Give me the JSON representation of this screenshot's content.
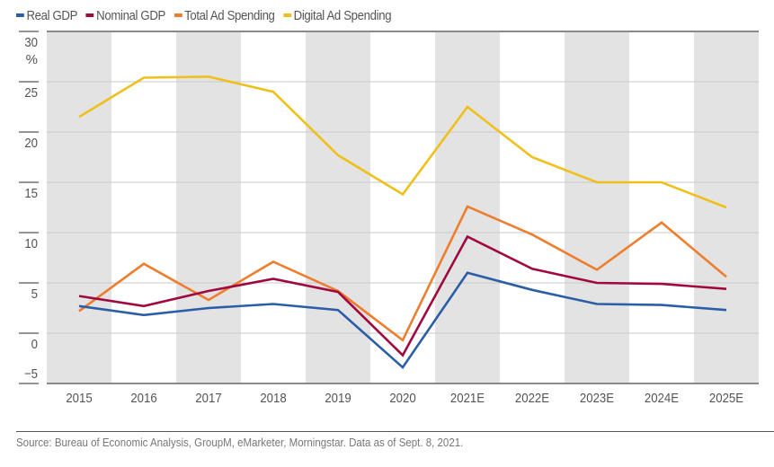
{
  "chart_data": {
    "type": "line",
    "title": "",
    "xlabel": "",
    "ylabel": "%",
    "ylim": [
      -5,
      30
    ],
    "yticks": [
      30,
      25,
      20,
      15,
      10,
      5,
      0,
      -5
    ],
    "ytick_labels": [
      "30",
      "25",
      "20",
      "15",
      "10",
      "5",
      "0",
      "−5"
    ],
    "y_unit_label": "%",
    "grid": true,
    "legend_position": "top-left",
    "categories": [
      "2015",
      "2016",
      "2017",
      "2018",
      "2019",
      "2020",
      "2021E",
      "2022E",
      "2023E",
      "2024E",
      "2025E"
    ],
    "series": [
      {
        "name": "Real GDP",
        "color": "#2b5ea7",
        "values": [
          2.7,
          1.8,
          2.5,
          2.9,
          2.3,
          -3.4,
          6.0,
          4.3,
          2.9,
          2.8,
          2.3
        ]
      },
      {
        "name": "Nominal GDP",
        "color": "#a0083f",
        "values": [
          3.7,
          2.7,
          4.2,
          5.4,
          4.1,
          -2.2,
          9.6,
          6.4,
          5.0,
          4.9,
          4.4
        ]
      },
      {
        "name": "Total Ad Spending",
        "color": "#ee7d2e",
        "values": [
          2.2,
          6.9,
          3.3,
          7.1,
          4.2,
          -0.7,
          12.6,
          9.8,
          6.3,
          11.0,
          5.6
        ]
      },
      {
        "name": "Digital Ad Spending",
        "color": "#f0c01a",
        "values": [
          21.5,
          25.4,
          25.5,
          24.0,
          17.7,
          13.8,
          22.5,
          17.5,
          15.0,
          15.0,
          12.5
        ]
      }
    ],
    "band_color": "#e3e3e3",
    "source": "Source: Bureau of Economic Analysis, GroupM, eMarketer, Morningstar. Data as of Sept. 8, 2021."
  }
}
